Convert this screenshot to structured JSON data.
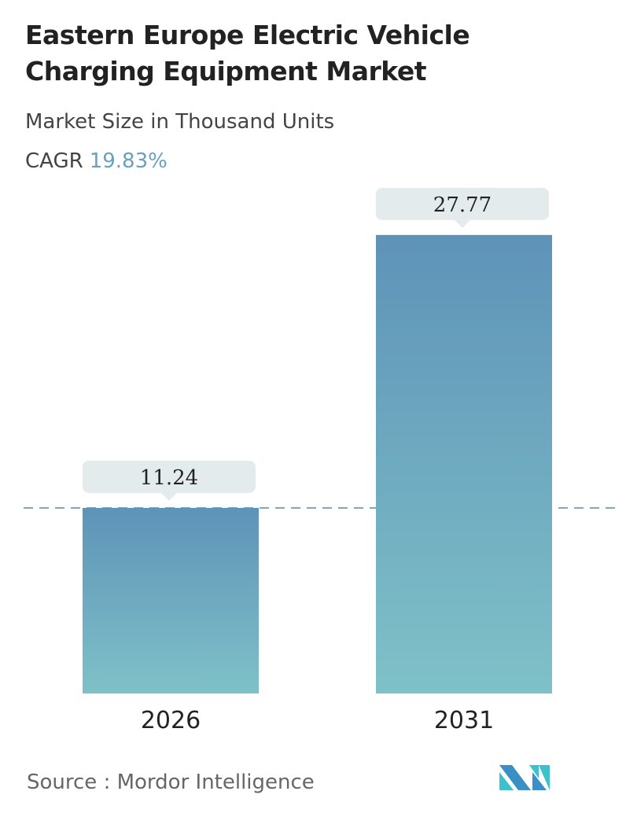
{
  "title": "Eastern Europe Electric Vehicle Charging Equipment Market",
  "subtitle": "Market Size in Thousand Units",
  "cagr_label": "CAGR",
  "cagr_value": "19.83%",
  "source": "Source :  Mordor Intelligence",
  "logo_text": "Mordor Intelligence",
  "colors": {
    "bar_top": "#5e93b8",
    "bar_bottom": "#7fc1c8",
    "label_bg": "#e3ebed",
    "accent": "#6a9fc0"
  },
  "chart_data": {
    "type": "bar",
    "categories": [
      "2026",
      "2031"
    ],
    "values": [
      11.24,
      27.77
    ],
    "data_labels": [
      "11.24",
      "27.77"
    ],
    "title": "Eastern Europe Electric Vehicle Charging Equipment Market",
    "ylabel": "",
    "xlabel": "",
    "grid": false,
    "reference_line": "dashed line at 2026 value"
  }
}
